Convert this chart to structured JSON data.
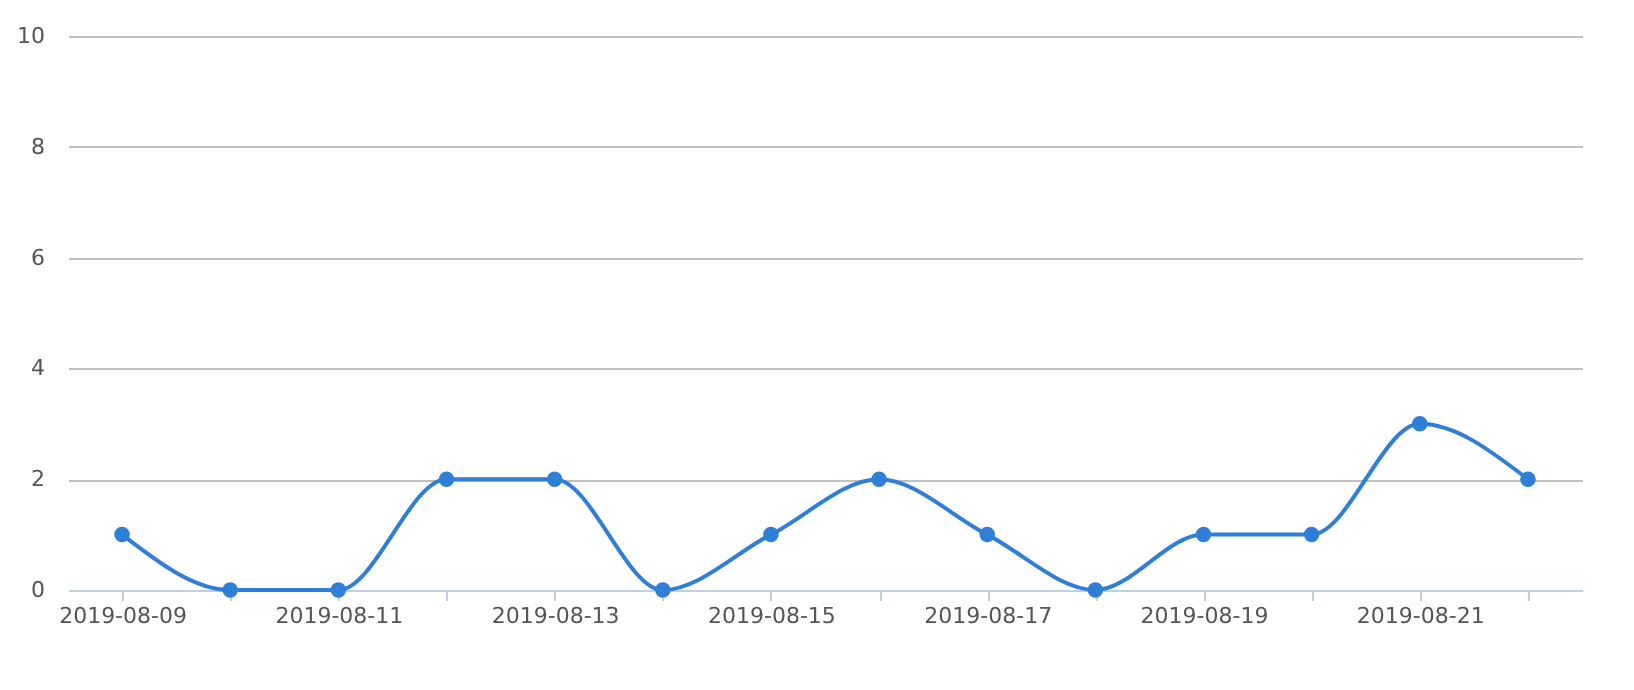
{
  "chart_data": {
    "type": "line",
    "categories": [
      "2019-08-09",
      null,
      "2019-08-11",
      null,
      "2019-08-13",
      null,
      "2019-08-15",
      null,
      "2019-08-17",
      null,
      "2019-08-19",
      null,
      "2019-08-21",
      null
    ],
    "series": [
      {
        "color": "#2f7ed8",
        "values": [
          1,
          0,
          0,
          2,
          2,
          0,
          1,
          2,
          1,
          0,
          1,
          1,
          3,
          2
        ]
      }
    ],
    "ylim": [
      0,
      10
    ],
    "yticks": [
      0,
      2,
      4,
      6,
      8,
      10
    ],
    "grid": "y",
    "marker": "circle",
    "legend": false
  }
}
